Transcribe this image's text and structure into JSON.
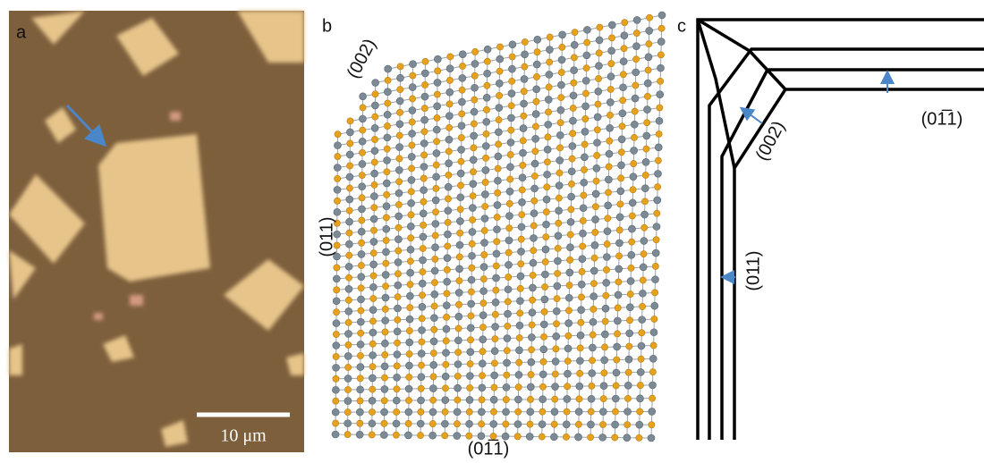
{
  "panels": [
    {
      "label": "a",
      "scale_bar": "10 μm"
    },
    {
      "label": "b",
      "annotations": [
        "(002)",
        "(011)",
        "(01̅1)"
      ]
    },
    {
      "label": "c",
      "annotations": [
        "(002)",
        "(01̅1)",
        "(011)"
      ]
    }
  ]
}
